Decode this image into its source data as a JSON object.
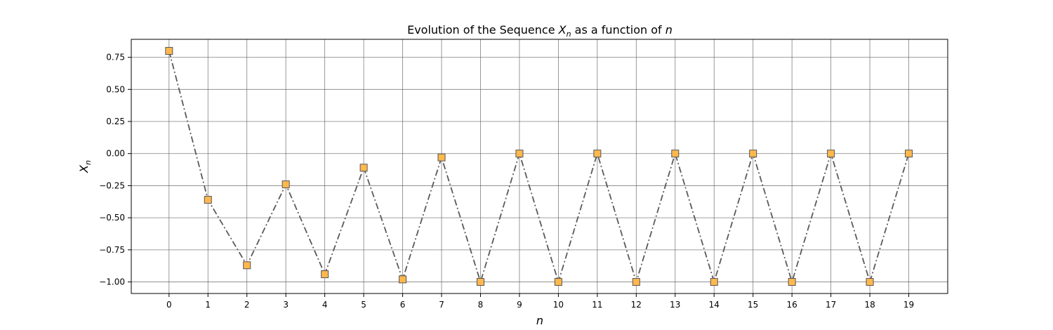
{
  "chart_data": {
    "type": "line",
    "title_prefix": "Evolution of the Sequence ",
    "title_var": "X",
    "title_sub": "n",
    "title_suffix": " as a function of ",
    "title_end": "n",
    "xlabel": "n",
    "ylabel_var": "X",
    "ylabel_sub": "n",
    "x": [
      0,
      1,
      2,
      3,
      4,
      5,
      6,
      7,
      8,
      9,
      10,
      11,
      12,
      13,
      14,
      15,
      16,
      17,
      18,
      19
    ],
    "series": [
      {
        "values": [
          0.8,
          -0.36,
          -0.87,
          -0.24,
          -0.94,
          -0.11,
          -0.98,
          -0.03,
          -1.0,
          0.0,
          -1.0,
          0.0,
          -1.0,
          0.0,
          -1.0,
          0.0,
          -1.0,
          0.0,
          -1.0,
          0.0
        ],
        "line_style": "dashdot",
        "line_color": "#5a5a5a",
        "marker": "square",
        "marker_fill": "#ffb84d",
        "marker_edge": "#555555"
      }
    ],
    "xticks": [
      "0",
      "1",
      "2",
      "3",
      "4",
      "5",
      "6",
      "7",
      "8",
      "9",
      "10",
      "11",
      "12",
      "13",
      "14",
      "15",
      "16",
      "17",
      "18",
      "19"
    ],
    "yticks": [
      -1.0,
      -0.75,
      -0.5,
      -0.25,
      0.0,
      0.25,
      0.5,
      0.75
    ],
    "ytick_labels": [
      "−1.00",
      "−0.75",
      "−0.50",
      "−0.25",
      "0.00",
      "0.25",
      "0.50",
      "0.75"
    ],
    "xlim": [
      -0.97,
      20.0
    ],
    "ylim": [
      -1.09,
      0.89
    ],
    "grid": true,
    "grid_color": "#555555"
  }
}
